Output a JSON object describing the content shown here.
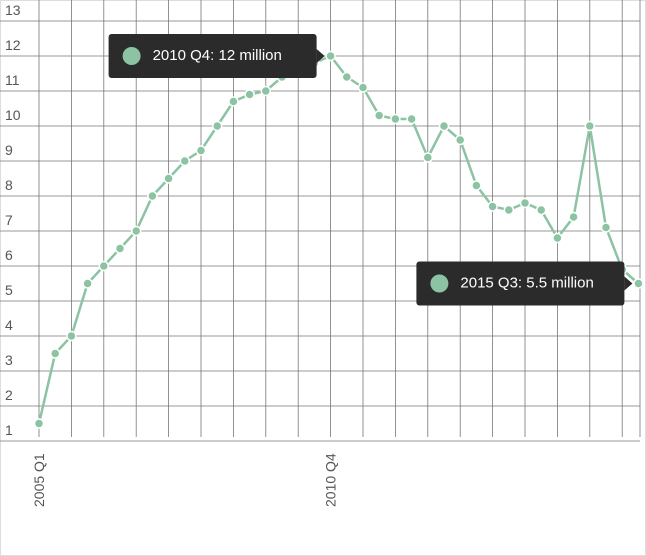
{
  "chart_data": {
    "type": "line",
    "categories": [
      "2005 Q1",
      null,
      null,
      null,
      null,
      null,
      null,
      null,
      null,
      null,
      null,
      null,
      null,
      null,
      null,
      null,
      null,
      null,
      "2010 Q4",
      null,
      null,
      null,
      null,
      null,
      null,
      null,
      null,
      null,
      null,
      null,
      null,
      null,
      null,
      null,
      null,
      null,
      null,
      null
    ],
    "series": [
      {
        "color": "#8cc3a3",
        "values": [
          1.5,
          3.5,
          4.0,
          5.5,
          6.0,
          6.5,
          7.0,
          8.0,
          8.5,
          9.0,
          9.3,
          10.0,
          10.7,
          10.9,
          11.0,
          11.4,
          11.6,
          11.8,
          12,
          11.4,
          11.1,
          10.3,
          10.2,
          10.2,
          9.1,
          10.0,
          9.6,
          8.3,
          7.7,
          7.6,
          7.8,
          7.6,
          6.8,
          7.4,
          10.0,
          7.1,
          5.9,
          5.5
        ]
      }
    ],
    "ylim": [
      1,
      13
    ],
    "yticks": [
      1,
      2,
      3,
      4,
      5,
      6,
      7,
      8,
      9,
      10,
      11,
      12,
      13
    ],
    "grid": true,
    "annotations": [
      {
        "text": "2010 Q4: 12 million",
        "index": 18
      },
      {
        "text": "2015 Q3: 5.5 million",
        "index": 37
      }
    ]
  }
}
